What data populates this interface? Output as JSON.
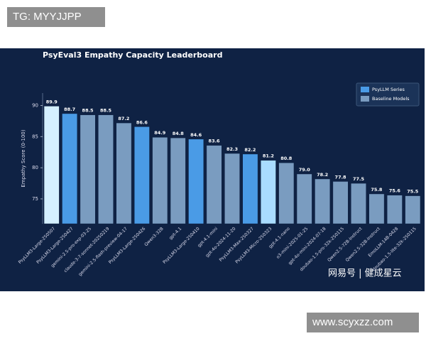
{
  "watermarks": {
    "top_left": "TG: MYYJJPP",
    "bottom_right": "www.scyxzz.com",
    "overlay": "网易号 | 健成星云"
  },
  "chart_data": {
    "type": "bar",
    "title": "PsyEval3 Empathy Capacity Leaderboard",
    "y_label": "Empathy Score (0-100)",
    "categories": [
      "PsyLLM3-Large-250507",
      "PsyLLM3-Large-250427",
      "gemini-2.5-pro-exp-03-25",
      "claude-3-7-sonnet-20250219",
      "gemini-2.5-flash-preview-04-17",
      "PsyLLM3-Large-250426",
      "Qwen3-32B",
      "gpt-4.1",
      "PsyLLM3-Large-250410",
      "gpt-4.1-mini",
      "gpt-4o-2024-11-20",
      "PsyLLM3-Max-250327",
      "PsyLLM3-Micro-250323",
      "gpt-4.1-nano",
      "o3-mini-2025-01-25",
      "gpt-4o-mini-2024-07-18",
      "doubao-1.5-pro-32k-250115",
      "Qwen2.5-72B-Instruct",
      "Qwen2.5-32B-Instruct",
      "EmoLLM-14B-0428",
      "doubao-1.5-lite-32k-250115"
    ],
    "values": [
      89.9,
      88.7,
      88.5,
      88.5,
      87.2,
      86.6,
      84.9,
      84.8,
      84.6,
      83.6,
      82.3,
      82.2,
      81.2,
      80.8,
      79.0,
      78.2,
      77.8,
      77.5,
      75.8,
      75.6,
      75.5
    ],
    "value_labels": [
      "89.9",
      "88.7",
      "88.5",
      "88.5",
      "87.2",
      "86.6",
      "84.9",
      "84.8",
      "84.6",
      "83.6",
      "82.3",
      "82.2",
      "81.2",
      "80.8",
      "79.0",
      "78.2",
      "77.8",
      "77.5",
      "75.8",
      "75.6",
      "75.5"
    ],
    "colors": [
      "#d4f0ff",
      "#4a9be6",
      "#7a9cc0",
      "#7a9cc0",
      "#7a9cc0",
      "#4a9be6",
      "#7a9cc0",
      "#7a9cc0",
      "#4a9be6",
      "#7a9cc0",
      "#7a9cc0",
      "#4a9be6",
      "#a9dcff",
      "#7a9cc0",
      "#7a9cc0",
      "#7a9cc0",
      "#7a9cc0",
      "#7a9cc0",
      "#7a9cc0",
      "#7a9cc0",
      "#7a9cc0"
    ],
    "legend": [
      {
        "name": "PsyLLM Series",
        "color": "#4a9be6"
      },
      {
        "name": "Baseline Models",
        "color": "#7a9cc0"
      }
    ],
    "legend_position": "upper right",
    "ylim": [
      71,
      92
    ],
    "yticks": [
      75,
      80,
      85,
      90
    ],
    "grid": false
  }
}
